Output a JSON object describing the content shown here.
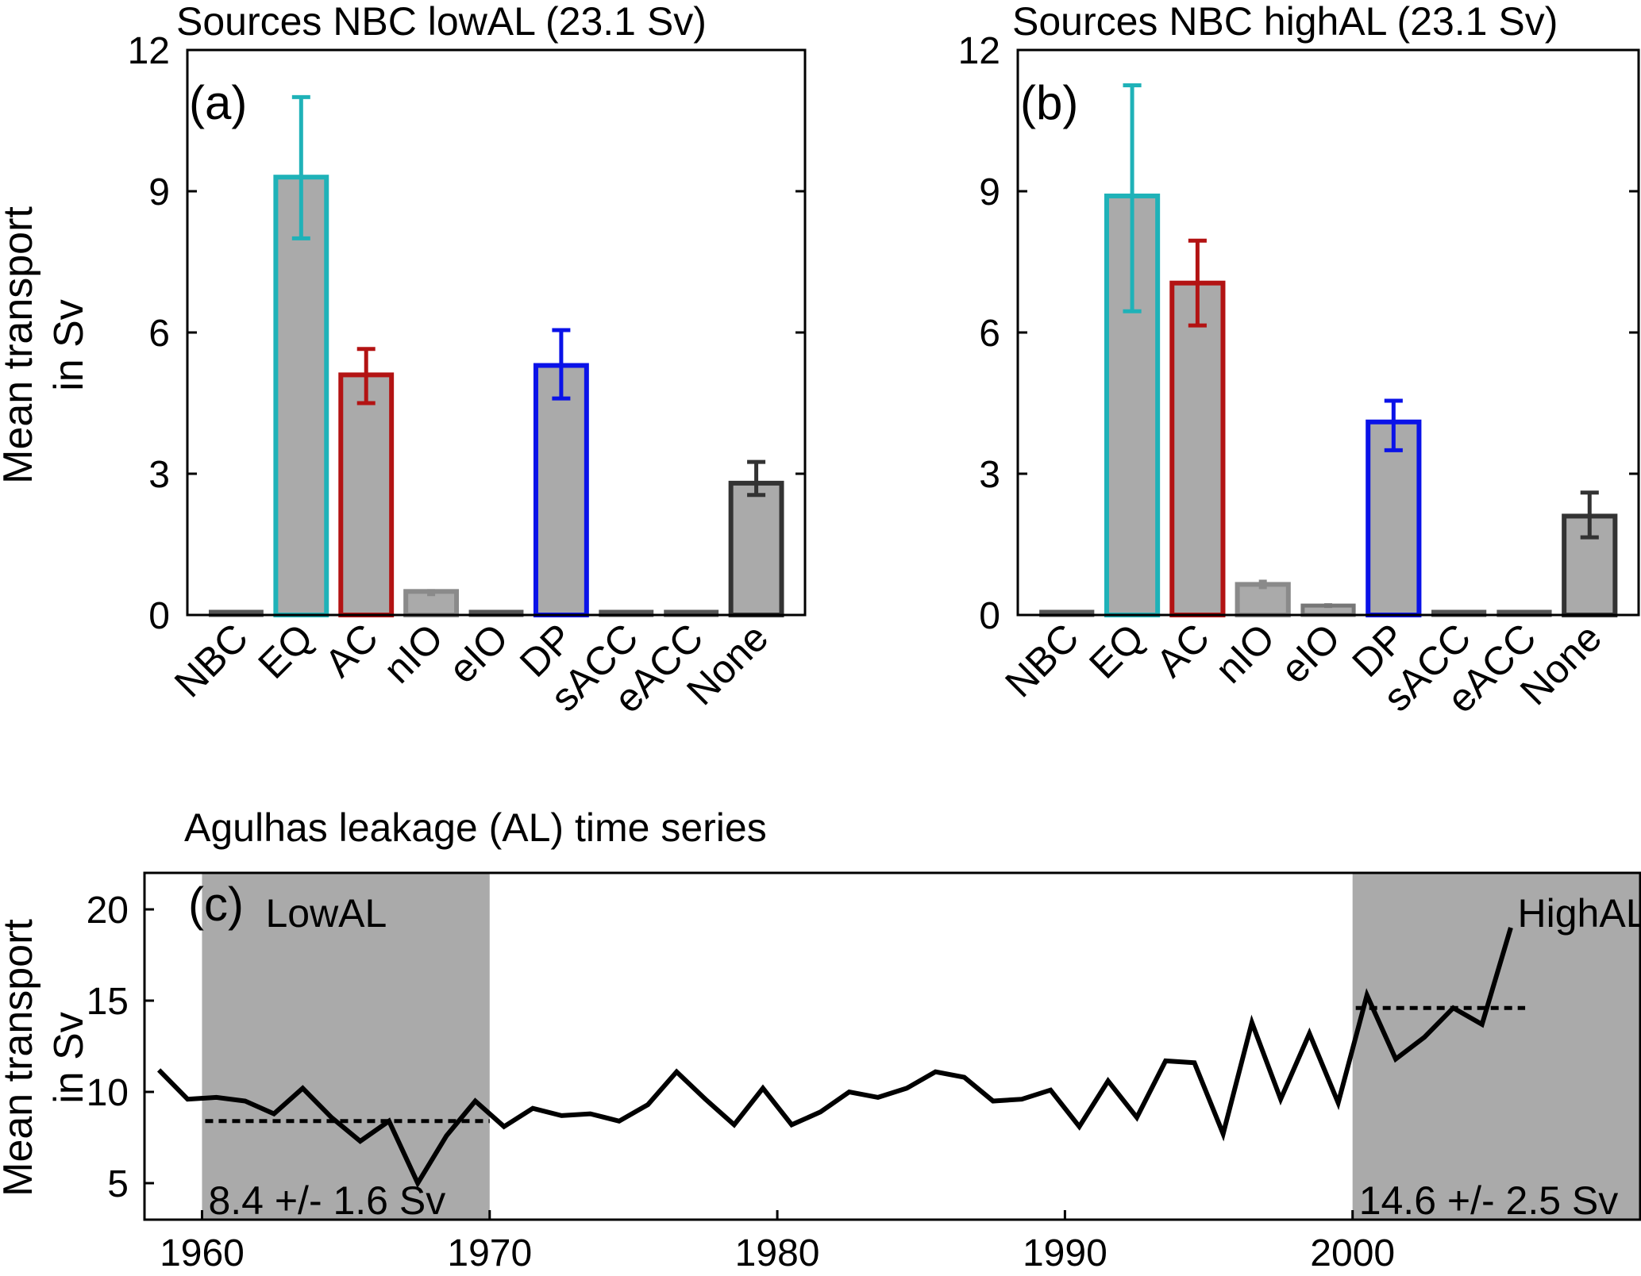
{
  "chart_data": [
    {
      "type": "bar",
      "title": "Sources NBC lowAL (23.1 Sv)",
      "panel_label": "(a)",
      "ylabel": [
        "Mean transport",
        "in Sv"
      ],
      "ylim": [
        0,
        12
      ],
      "yticks": [
        0,
        3,
        6,
        9,
        12
      ],
      "categories": [
        "NBC",
        "EQ",
        "AC",
        "nIO",
        "eIO",
        "DP",
        "sACC",
        "eACC",
        "None"
      ],
      "values": [
        0.05,
        9.3,
        5.1,
        0.5,
        0.05,
        5.3,
        0.03,
        0.02,
        2.8
      ],
      "error_low": [
        null,
        8.0,
        4.5,
        0.4,
        null,
        4.6,
        null,
        null,
        2.55
      ],
      "error_high": [
        null,
        11.0,
        5.65,
        0.55,
        null,
        6.05,
        null,
        null,
        3.25
      ],
      "edge_colors": [
        "#555555",
        "#1fb2b8",
        "#b31313",
        "#8a8a8a",
        "#555555",
        "#0a12e8",
        "#555555",
        "#555555",
        "#333333"
      ],
      "fill_color": "#aaaaaa"
    },
    {
      "type": "bar",
      "title": "Sources NBC highAL (23.1 Sv)",
      "panel_label": "(b)",
      "ylim": [
        0,
        12
      ],
      "yticks": [
        0,
        3,
        6,
        9,
        12
      ],
      "categories": [
        "NBC",
        "EQ",
        "AC",
        "nIO",
        "eIO",
        "DP",
        "sACC",
        "eACC",
        "None"
      ],
      "values": [
        0.05,
        8.9,
        7.05,
        0.65,
        0.2,
        4.1,
        0.03,
        0.02,
        2.1
      ],
      "error_low": [
        null,
        6.45,
        6.15,
        0.55,
        0.15,
        3.5,
        null,
        null,
        1.65
      ],
      "error_high": [
        null,
        11.25,
        7.95,
        0.75,
        0.25,
        4.55,
        null,
        null,
        2.6
      ],
      "edge_colors": [
        "#555555",
        "#1fb2b8",
        "#b31313",
        "#8a8a8a",
        "#777777",
        "#0a12e8",
        "#555555",
        "#555555",
        "#333333"
      ],
      "fill_color": "#aaaaaa"
    },
    {
      "type": "line",
      "title": "Agulhas leakage (AL) time series",
      "panel_label": "(c)",
      "ylabel": [
        "Mean transport",
        "in Sv"
      ],
      "xlim": [
        1958,
        2010
      ],
      "ylim": [
        3,
        22
      ],
      "xticks": [
        1960,
        1970,
        1980,
        1990,
        2000
      ],
      "yticks": [
        5,
        10,
        15,
        20
      ],
      "x": [
        1958.5,
        1959.5,
        1960.5,
        1961.5,
        1962.5,
        1963.5,
        1964.5,
        1965.5,
        1966.5,
        1967.5,
        1968.5,
        1969.5,
        1970.5,
        1971.5,
        1972.5,
        1973.5,
        1974.5,
        1975.5,
        1976.5,
        1977.5,
        1978.5,
        1979.5,
        1980.5,
        1981.5,
        1982.5,
        1983.5,
        1984.5,
        1985.5,
        1986.5,
        1987.5,
        1988.5,
        1989.5,
        1990.5,
        1991.5,
        1992.5,
        1993.5,
        1994.5,
        1995.5,
        1996.5,
        1997.5,
        1998.5,
        1999.5,
        2000.5,
        2001.5,
        2002.5,
        2003.5,
        2004.5,
        2005.5
      ],
      "y": [
        11.2,
        9.6,
        9.7,
        9.5,
        8.8,
        10.2,
        8.6,
        7.3,
        8.4,
        5.0,
        7.6,
        9.5,
        8.1,
        9.1,
        8.7,
        8.8,
        8.4,
        9.3,
        11.1,
        9.6,
        8.2,
        10.2,
        8.2,
        8.9,
        10.0,
        9.7,
        10.2,
        11.1,
        10.8,
        9.5,
        9.6,
        10.1,
        8.1,
        10.6,
        8.6,
        11.7,
        11.6,
        7.7,
        13.8,
        9.6,
        13.2,
        9.4,
        15.3,
        11.8,
        13.0,
        14.6,
        13.7,
        19.0
      ],
      "shaded_periods": [
        {
          "label": "LowAL",
          "x_start": 1960,
          "x_end": 1970,
          "mean": 8.4,
          "text": "8.4 +/- 1.6 Sv"
        },
        {
          "label": "HighAL",
          "x_start": 2000,
          "x_end": 2010,
          "mean": 14.6,
          "text": "14.6 +/- 2.5 Sv"
        }
      ]
    }
  ]
}
